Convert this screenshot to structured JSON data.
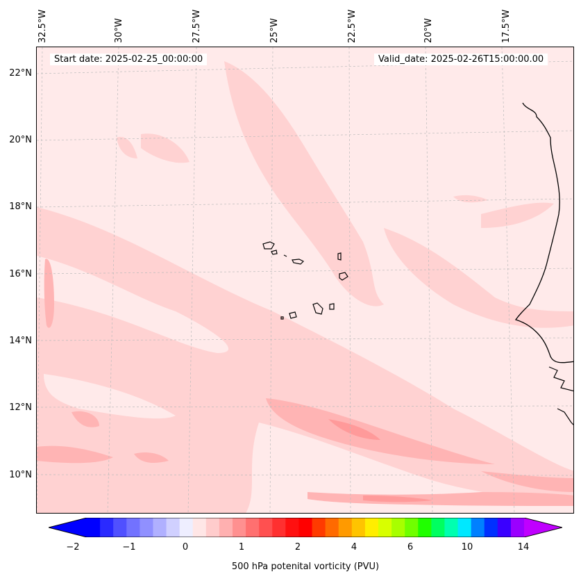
{
  "header": {
    "start_date": "Start date: 2025-02-25_00:00:00",
    "valid_date": "Valid_date: 2025-02-26T15:00:00.00"
  },
  "map": {
    "longitude_labels": [
      "32.5°W",
      "30°W",
      "27.5°W",
      "25°W",
      "22.5°W",
      "20°W",
      "17.5°W"
    ],
    "latitude_labels": [
      "22°N",
      "20°N",
      "18°N",
      "16°N",
      "14°N",
      "12°N",
      "10°N"
    ],
    "field_colors": {
      "background": "#ffeaea",
      "light": "#ffd2d2",
      "medium": "#ffb4b4",
      "strong": "#ff9a9a"
    }
  },
  "colorbar": {
    "label": "500 hPa potenital vorticity (PVU)",
    "ticks": [
      "−2",
      "−1",
      "0",
      "1",
      "2",
      "4",
      "6",
      "10",
      "14"
    ],
    "colors": [
      "#0000ff",
      "#2a2aff",
      "#5050ff",
      "#7272ff",
      "#9090ff",
      "#b0b0ff",
      "#d0d0ff",
      "#eeeeff",
      "#ffe6e6",
      "#ffcccc",
      "#ffb0b0",
      "#ff9090",
      "#ff7070",
      "#ff5050",
      "#ff3030",
      "#ff1010",
      "#ff0000",
      "#ff3a00",
      "#ff6a00",
      "#ff9a00",
      "#ffc400",
      "#ffee00",
      "#d8ff00",
      "#a8ff00",
      "#70ff00",
      "#20ff00",
      "#00ff60",
      "#00ffb0",
      "#00e8ff",
      "#0080ff",
      "#0030ff",
      "#3a00ff",
      "#9a00ff"
    ],
    "under_color": "#0000ff",
    "over_color": "#c000ff"
  }
}
